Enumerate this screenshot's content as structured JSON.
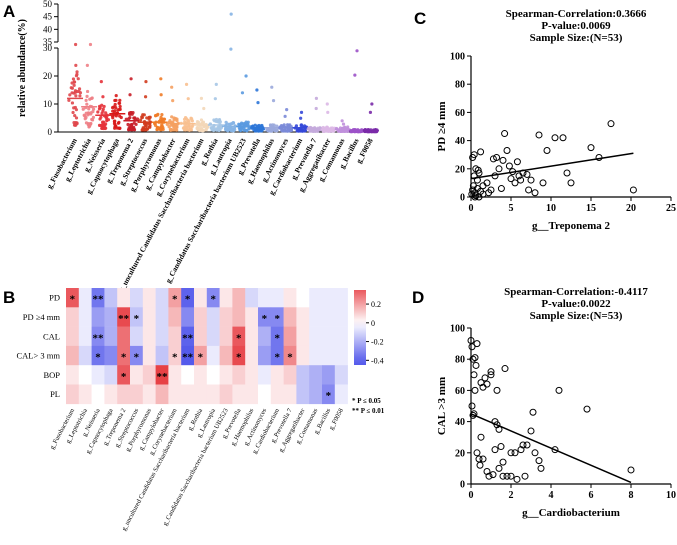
{
  "panels": {
    "A": "A",
    "B": "B",
    "C": "C",
    "D": "D"
  },
  "chart_data": [
    {
      "type": "scatter",
      "subtype": "dot-strip",
      "panel": "A",
      "ylabel": "relative abundance(%)",
      "yticks_lower": [
        0,
        10,
        20,
        30
      ],
      "yticks_upper": [
        35,
        40,
        45,
        50
      ],
      "ylim": [
        0,
        50
      ],
      "axis_break": [
        30,
        35
      ],
      "categories": [
        "g_Fusobacterium",
        "g_Leptotrichia",
        "g_Neisseria",
        "g_Capnocytophaga",
        "g_Treponema 2",
        "g_Streptococcus",
        "g_Porphyromonas",
        "g_Campylobacter",
        "g_Corynebacterium",
        "g_uncultured Candidatus Saccharibacteria bacterium",
        "g_Rothia",
        "g_Lautropia",
        "g_Candidatus Saccharibacteria bacterium UB2523",
        "g_Prevotella",
        "g_Haemophilus",
        "g_Actinomyces",
        "g_Cardiobacterium",
        "g_Prevotella 7",
        "g_Aggregatibacter",
        "g_Comamonas",
        "g_Bacillus",
        "g_F0058"
      ],
      "colors": [
        "#e0474c",
        "#ee7f86",
        "#e5323a",
        "#d81818",
        "#c81e28",
        "#d23c1e",
        "#f07c28",
        "#f5a060",
        "#f8c090",
        "#f3d7b8",
        "#a6c6e6",
        "#86b4e4",
        "#5a9ae0",
        "#2c76d8",
        "#9aa8dc",
        "#7a8ad8",
        "#3448d8",
        "#c4aadc",
        "#dcb8e6",
        "#c090dc",
        "#9c52c8",
        "#7a2aa8"
      ],
      "medians": [
        12,
        9,
        6,
        6.5,
        4,
        3.5,
        3.5,
        3,
        3,
        2.5,
        2.5,
        2,
        2,
        1.5,
        1.5,
        1.5,
        1.5,
        1,
        1,
        1,
        0.5,
        0.5
      ],
      "maxima": [
        34,
        34,
        18,
        13,
        19,
        18,
        19,
        16,
        17,
        12,
        17,
        46,
        20,
        15,
        16,
        8,
        7,
        12,
        10,
        4,
        29,
        10
      ]
    },
    {
      "type": "heatmap",
      "panel": "B",
      "rows": [
        "PD",
        "PD ≥4 mm",
        "CAL",
        "CAL> 3 mm",
        "BOP",
        "PL"
      ],
      "columns": [
        "g_Fusobacterium",
        "g_Leptotrichia",
        "g_Neisseria",
        "g_Capnocytophaga",
        "g_Treponema 2",
        "g_Streptococcus",
        "g_Porphyromonas",
        "g_Campylobacter",
        "g_Corynebacterium",
        "g_uncultured Candidatus Saccharibacteria bacterium",
        "g_Rothia",
        "g_Lautropia",
        "g_Candidatus Saccharibacteria bacterium UB2523",
        "g_Prevotella",
        "g_Haemophilus",
        "g_Actinomyces",
        "g_Cardiobacterium",
        "g_Prevotella 7",
        "g_Aggregatibacter",
        "g_Comamonas",
        "g_Bacillus",
        "g_F0058"
      ],
      "values": [
        [
          0.35,
          -0.05,
          -0.35,
          -0.15,
          0.05,
          -0.1,
          0.05,
          -0.1,
          0.2,
          -0.4,
          0.05,
          -0.3,
          0.05,
          0.15,
          -0.1,
          -0.05,
          -0.05,
          0.05,
          0.0,
          -0.05,
          -0.05,
          -0.05
        ],
        [
          0.1,
          -0.05,
          -0.25,
          -0.2,
          0.38,
          -0.15,
          0.05,
          -0.1,
          0.15,
          -0.3,
          0.1,
          -0.1,
          0.1,
          0.15,
          0.05,
          -0.3,
          -0.3,
          0.15,
          0.05,
          -0.05,
          -0.05,
          -0.05
        ],
        [
          0.1,
          -0.05,
          -0.3,
          -0.2,
          0.3,
          -0.1,
          0.05,
          -0.1,
          0.1,
          -0.4,
          0.1,
          -0.1,
          0.1,
          0.35,
          0.05,
          -0.2,
          -0.35,
          0.2,
          0.05,
          -0.05,
          -0.05,
          -0.05
        ],
        [
          0.15,
          -0.1,
          -0.35,
          -0.3,
          0.3,
          -0.3,
          0.05,
          -0.15,
          0.1,
          -0.42,
          0.2,
          -0.05,
          0.15,
          0.38,
          0.05,
          -0.25,
          -0.35,
          0.25,
          0.05,
          -0.05,
          -0.05,
          -0.05
        ],
        [
          0.05,
          0.0,
          -0.05,
          -0.1,
          0.35,
          0.05,
          0.1,
          0.4,
          0.05,
          0.0,
          0.05,
          0.0,
          0.05,
          0.1,
          0.05,
          -0.05,
          0.05,
          0.1,
          -0.15,
          -0.2,
          -0.25,
          -0.1
        ],
        [
          0.1,
          0.05,
          0.0,
          0.05,
          0.1,
          0.1,
          0.05,
          0.15,
          0.05,
          0.05,
          0.05,
          0.05,
          0.1,
          0.05,
          0.05,
          0.0,
          0.05,
          0.05,
          -0.15,
          -0.2,
          -0.3,
          -0.05
        ]
      ],
      "significance": [
        [
          "*",
          "",
          "**",
          "",
          "",
          "",
          "",
          "",
          "*",
          "*",
          "",
          "*",
          "",
          "",
          "",
          "",
          "",
          "",
          "",
          "",
          "",
          ""
        ],
        [
          "",
          "",
          "",
          "",
          "**",
          "*",
          "",
          "",
          "",
          "",
          "",
          "",
          "",
          "",
          "",
          "*",
          "*",
          "",
          "",
          "",
          "",
          ""
        ],
        [
          "",
          "",
          "**",
          "",
          "",
          "",
          "",
          "",
          "",
          "**",
          "",
          "",
          "",
          "*",
          "",
          "",
          "*",
          "",
          "",
          "",
          "",
          ""
        ],
        [
          "",
          "",
          "*",
          "",
          "*",
          "*",
          "",
          "",
          "*",
          "**",
          "*",
          "",
          "",
          "*",
          "",
          "",
          "*",
          "*",
          "",
          "",
          "",
          ""
        ],
        [
          "",
          "",
          "",
          "",
          "*",
          "",
          "",
          "**",
          "",
          "",
          "",
          "",
          "",
          "",
          "",
          "",
          "",
          "",
          "",
          "",
          "",
          ""
        ],
        [
          "",
          "",
          "",
          "",
          "",
          "",
          "",
          "",
          "",
          "",
          "",
          "",
          "",
          "",
          "",
          "",
          "",
          "",
          "",
          "",
          "*",
          ""
        ]
      ],
      "colorbar": {
        "ticks": [
          0.2,
          0,
          -0.2,
          -0.4
        ],
        "labels": [
          "0.2",
          "0",
          "-0.2",
          "-0.4"
        ],
        "min": -0.45,
        "max": 0.35
      },
      "legend": [
        "* P ≤ 0.05",
        "** P ≤ 0.01"
      ]
    },
    {
      "type": "scatter",
      "panel": "C",
      "title_lines": [
        "Spearman-Correlation:0.3666",
        "P-value:0.0069",
        "Sample Size:(N=53)"
      ],
      "xlabel": "g__Treponema 2",
      "ylabel": "PD ≥4 mm",
      "xlim": [
        0,
        25
      ],
      "ylim": [
        0,
        100
      ],
      "xticks": [
        0,
        5,
        10,
        15,
        20,
        25
      ],
      "yticks": [
        0,
        20,
        40,
        60,
        80,
        100
      ],
      "fit": {
        "x": [
          0,
          20.3
        ],
        "y": [
          13,
          31
        ]
      },
      "x": [
        0.1,
        0.2,
        0.3,
        0.4,
        0.5,
        0.6,
        0.8,
        1.0,
        1.2,
        1.5,
        0.2,
        0.4,
        0.6,
        0.8,
        1.0,
        1.5,
        2.0,
        2.5,
        3.0,
        3.5,
        4.0,
        4.5,
        5.0,
        5.5,
        6.0,
        6.5,
        7.0,
        7.5,
        8.0,
        9.0,
        9.5,
        10.5,
        12.0,
        12.5,
        15.0,
        16.0,
        17.5,
        20.3,
        3.2,
        4.2,
        4.8,
        5.2,
        6.2,
        7.2,
        2.2,
        3.8,
        1.2,
        0.5,
        11.5,
        8.5,
        2.8,
        5.8,
        0.9
      ],
      "y": [
        2,
        5,
        8,
        15,
        3,
        1,
        6,
        0,
        4,
        2,
        28,
        30,
        20,
        12,
        17,
        8,
        10,
        5,
        15,
        20,
        26,
        33,
        13,
        10,
        15,
        17,
        16,
        12,
        3,
        10,
        33,
        42,
        17,
        10,
        35,
        28,
        52,
        5,
        28,
        45,
        22,
        18,
        12,
        5,
        3,
        6,
        32,
        0,
        42,
        44,
        27,
        25,
        19
      ]
    },
    {
      "type": "scatter",
      "panel": "D",
      "title_lines": [
        "Spearman-Correlation:-0.4117",
        "P-value:0.0022",
        "Sample Size:(N=53)"
      ],
      "xlabel": "g__Cardiobacterium",
      "ylabel": "CAL >3 mm",
      "xlim": [
        0,
        10
      ],
      "ylim": [
        0,
        100
      ],
      "xticks": [
        0,
        2,
        4,
        6,
        8,
        10
      ],
      "yticks": [
        0,
        20,
        40,
        60,
        80,
        100
      ],
      "fit": {
        "x": [
          0,
          8
        ],
        "y": [
          45,
          1
        ]
      },
      "x": [
        0.0,
        0.05,
        0.1,
        0.15,
        0.2,
        0.05,
        0.1,
        0.15,
        0.3,
        0.5,
        0.6,
        0.7,
        0.8,
        0.5,
        0.6,
        0.8,
        1.0,
        1.0,
        1.2,
        1.3,
        1.4,
        1.5,
        1.6,
        1.8,
        1.2,
        1.3,
        1.4,
        1.6,
        2.0,
        2.2,
        2.0,
        2.5,
        2.6,
        2.8,
        3.0,
        3.2,
        3.4,
        3.5,
        4.4,
        4.2,
        5.8,
        8.0,
        0.4,
        0.9,
        1.1,
        0.3,
        1.7,
        2.3,
        2.7,
        0.25,
        0.45,
        0.2,
        3.1
      ],
      "y": [
        92,
        88,
        80,
        70,
        60,
        50,
        44,
        45,
        20,
        65,
        62,
        68,
        64,
        30,
        16,
        8,
        70,
        72,
        40,
        38,
        35,
        24,
        14,
        5,
        22,
        60,
        10,
        5,
        20,
        20,
        5,
        22,
        25,
        25,
        34,
        20,
        15,
        10,
        60,
        22,
        48,
        9,
        16,
        5,
        6,
        90,
        74,
        3,
        5,
        76,
        12,
        81,
        46
      ]
    }
  ]
}
